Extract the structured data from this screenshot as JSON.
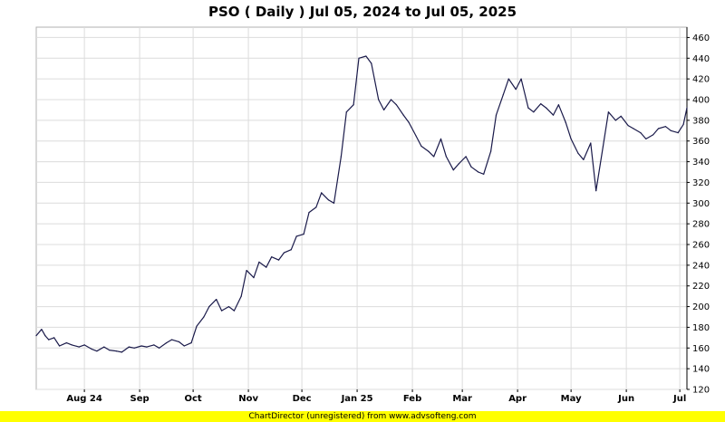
{
  "chart_data": {
    "type": "line",
    "title": "PSO ( Daily ) Jul 05, 2024 to Jul 05, 2025",
    "x_start": "2024-07-05",
    "x_end": "2025-07-05",
    "xlabel": "",
    "ylabel": "",
    "ylim": [
      120,
      470
    ],
    "y_ticks": [
      120,
      140,
      160,
      180,
      200,
      220,
      240,
      260,
      280,
      300,
      320,
      340,
      360,
      380,
      400,
      420,
      440,
      460
    ],
    "x_ticks": [
      {
        "label": "Aug 24",
        "date": "2024-08-01"
      },
      {
        "label": "Sep",
        "date": "2024-09-01"
      },
      {
        "label": "Oct",
        "date": "2024-10-01"
      },
      {
        "label": "Nov",
        "date": "2024-11-01"
      },
      {
        "label": "Dec",
        "date": "2024-12-01"
      },
      {
        "label": "Jan 25",
        "date": "2025-01-01"
      },
      {
        "label": "Feb",
        "date": "2025-02-01"
      },
      {
        "label": "Mar",
        "date": "2025-03-01"
      },
      {
        "label": "Apr",
        "date": "2025-04-01"
      },
      {
        "label": "May",
        "date": "2025-05-01"
      },
      {
        "label": "Jun",
        "date": "2025-06-01"
      },
      {
        "label": "Jul",
        "date": "2025-07-01"
      }
    ],
    "grid": true,
    "y_axis_side": "right",
    "line_color": "#1a1a4a",
    "series": [
      {
        "x": [
          "2024-07-05",
          "2024-07-08",
          "2024-07-10",
          "2024-07-12",
          "2024-07-15",
          "2024-07-18",
          "2024-07-22",
          "2024-07-25",
          "2024-07-29",
          "2024-08-01",
          "2024-08-05",
          "2024-08-08",
          "2024-08-12",
          "2024-08-15",
          "2024-08-19",
          "2024-08-22",
          "2024-08-26",
          "2024-08-29",
          "2024-09-02",
          "2024-09-05",
          "2024-09-09",
          "2024-09-12",
          "2024-09-16",
          "2024-09-19",
          "2024-09-23",
          "2024-09-26",
          "2024-09-30",
          "2024-10-03",
          "2024-10-07",
          "2024-10-10",
          "2024-10-14",
          "2024-10-17",
          "2024-10-21",
          "2024-10-24",
          "2024-10-28",
          "2024-10-31",
          "2024-11-04",
          "2024-11-07",
          "2024-11-11",
          "2024-11-14",
          "2024-11-18",
          "2024-11-21",
          "2024-11-25",
          "2024-11-28",
          "2024-12-02",
          "2024-12-05",
          "2024-12-09",
          "2024-12-12",
          "2024-12-16",
          "2024-12-19",
          "2024-12-23",
          "2024-12-26",
          "2024-12-30",
          "2025-01-02",
          "2025-01-06",
          "2025-01-09",
          "2025-01-13",
          "2025-01-16",
          "2025-01-20",
          "2025-01-23",
          "2025-01-27",
          "2025-01-30",
          "2025-02-03",
          "2025-02-06",
          "2025-02-10",
          "2025-02-13",
          "2025-02-17",
          "2025-02-20",
          "2025-02-24",
          "2025-02-27",
          "2025-03-03",
          "2025-03-06",
          "2025-03-10",
          "2025-03-13",
          "2025-03-17",
          "2025-03-20",
          "2025-03-24",
          "2025-03-27",
          "2025-03-31",
          "2025-04-03",
          "2025-04-07",
          "2025-04-10",
          "2025-04-14",
          "2025-04-17",
          "2025-04-21",
          "2025-04-24",
          "2025-04-28",
          "2025-05-01",
          "2025-05-05",
          "2025-05-08",
          "2025-05-12",
          "2025-05-15",
          "2025-05-19",
          "2025-05-22",
          "2025-05-26",
          "2025-05-29",
          "2025-06-02",
          "2025-06-05",
          "2025-06-09",
          "2025-06-12",
          "2025-06-16",
          "2025-06-19",
          "2025-06-23",
          "2025-06-26",
          "2025-06-30",
          "2025-07-03",
          "2025-07-05"
        ],
        "values": [
          172,
          178,
          172,
          168,
          170,
          162,
          165,
          163,
          161,
          163,
          159,
          157,
          161,
          158,
          157,
          156,
          161,
          160,
          162,
          161,
          163,
          160,
          165,
          168,
          166,
          162,
          165,
          181,
          190,
          200,
          207,
          196,
          200,
          196,
          210,
          235,
          228,
          243,
          238,
          248,
          245,
          252,
          255,
          268,
          270,
          291,
          296,
          310,
          303,
          300,
          345,
          388,
          395,
          440,
          442,
          435,
          400,
          390,
          400,
          395,
          385,
          378,
          365,
          355,
          350,
          345,
          362,
          345,
          332,
          338,
          345,
          335,
          330,
          328,
          350,
          385,
          405,
          420,
          410,
          420,
          392,
          388,
          396,
          392,
          385,
          395,
          378,
          362,
          348,
          342,
          358,
          312,
          355,
          388,
          380,
          384,
          375,
          372,
          368,
          362,
          366,
          372,
          374,
          370,
          368,
          376,
          392
        ]
      }
    ]
  },
  "footer": {
    "text": "ChartDirector (unregistered) from www.advsofteng.com",
    "background": "#ffff00"
  }
}
